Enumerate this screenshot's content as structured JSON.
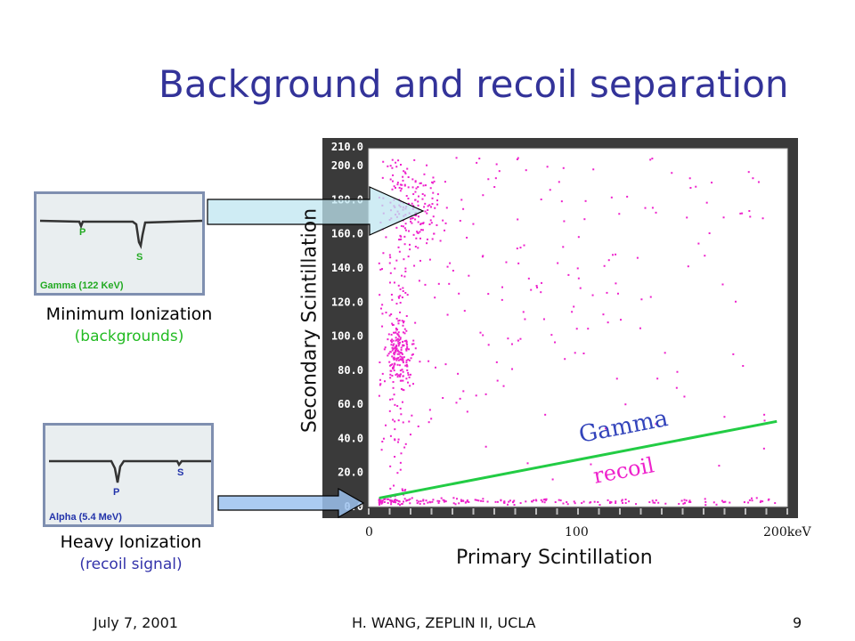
{
  "slide": {
    "title": "Background and recoil separation",
    "footer_date": "July 7, 2001",
    "footer_center": "H. WANG, ZEPLIN II, UCLA",
    "page_number": "9"
  },
  "gamma_panel": {
    "label_p": "P",
    "label_s": "S",
    "caption": "Gamma (122 KeV)",
    "title": "Minimum Ionization",
    "subtitle": "(backgrounds)",
    "subtitle_color": "#22bb22"
  },
  "alpha_panel": {
    "label_p": "P",
    "label_s": "S",
    "caption": "Alpha (5.4 MeV)",
    "title": "Heavy Ionization",
    "subtitle": "(recoil signal)",
    "subtitle_color": "#3333aa"
  },
  "chart_data": {
    "type": "scatter",
    "xlabel": "Primary Scintillation",
    "ylabel": "Secondary Scintillation",
    "x_tick_labels": [
      "0",
      "100",
      "200keV"
    ],
    "y_ticks": [
      "0.0",
      "20.0",
      "40.0",
      "60.0",
      "80.0",
      "100.0",
      "120.0",
      "140.0",
      "160.0",
      "180.0",
      "200.0",
      "210.0"
    ],
    "xlim": [
      0,
      200
    ],
    "ylim": [
      0,
      210
    ],
    "grid": false,
    "point_color": "#ee22cc",
    "separation_line": {
      "x": [
        5,
        195
      ],
      "y": [
        5,
        50
      ],
      "color": "#22cc44"
    },
    "annotations": [
      {
        "text": "Gamma",
        "color": "#3344bb"
      },
      {
        "text": "recoil",
        "color": "#ee22cc"
      }
    ],
    "clusters": [
      {
        "name": "recoil band",
        "x_range": [
          5,
          195
        ],
        "y_center": 3,
        "y_spread": 1.5,
        "count": 200
      },
      {
        "name": "gamma cluster",
        "x_center": 15,
        "y_center": 90,
        "x_spread": 3,
        "y_spread": 9,
        "count": 160
      },
      {
        "name": "upper cluster",
        "x_center": 22,
        "y_center": 172,
        "x_spread": 6,
        "y_spread": 12,
        "count": 110
      }
    ]
  }
}
